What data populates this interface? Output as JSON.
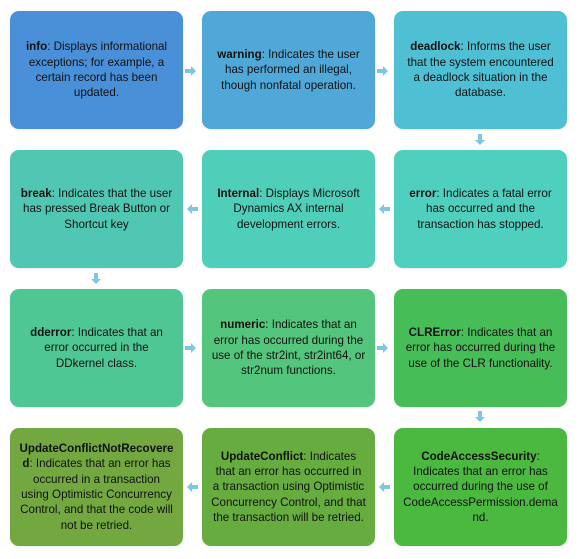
{
  "colors": {
    "arrow": "#7fc6e4",
    "boxes": [
      "#4a90d9",
      "#4fa8d8",
      "#4fc0d4",
      "#4fcfbe",
      "#4fcfb9",
      "#4fc7b2",
      "#4ec794",
      "#54c57c",
      "#46bd56",
      "#4bb83f",
      "#67ac3f",
      "#72a83f"
    ]
  },
  "boxes": [
    {
      "key": "info",
      "rest": ": Displays informational exceptions; for example, a certain record has been updated."
    },
    {
      "key": "warning",
      "rest": ": Indicates the user has performed an illegal, though nonfatal operation."
    },
    {
      "key": "deadlock",
      "rest": ": Informs the user that the system encountered a deadlock situation in the database."
    },
    {
      "key": "error",
      "rest": ": Indicates a fatal error has occurred and the transaction has stopped."
    },
    {
      "key": "Internal",
      "rest": ": Displays Microsoft Dynamics AX internal development errors."
    },
    {
      "key": "break",
      "rest": ": Indicates that the user has pressed Break Button or Shortcut key"
    },
    {
      "key": "dderror",
      "rest": ": Indicates that an error occurred in the DDkernel class."
    },
    {
      "key": "numeric",
      "rest": ": Indicates that an error has occurred during the use of the str2int, str2int64, or str2num functions."
    },
    {
      "key": "CLRError",
      "rest": ": Indicates that an error has occurred during the use of the CLR functionality."
    },
    {
      "key": "CodeAccessSecurity",
      "rest": ": Indicates that an error has occurred during the use of CodeAccessPermission.demand."
    },
    {
      "key": "UpdateConflict",
      "rest": ": Indicates that an error has occurred in a transaction using Optimistic Concurrency Control, and that the transaction will be retried."
    },
    {
      "key": "UpdateConflictNotRecovered",
      "rest": ": Indicates that an error has occurred in a transaction using Optimistic Concurrency Control, and that the code will not be retried."
    }
  ]
}
